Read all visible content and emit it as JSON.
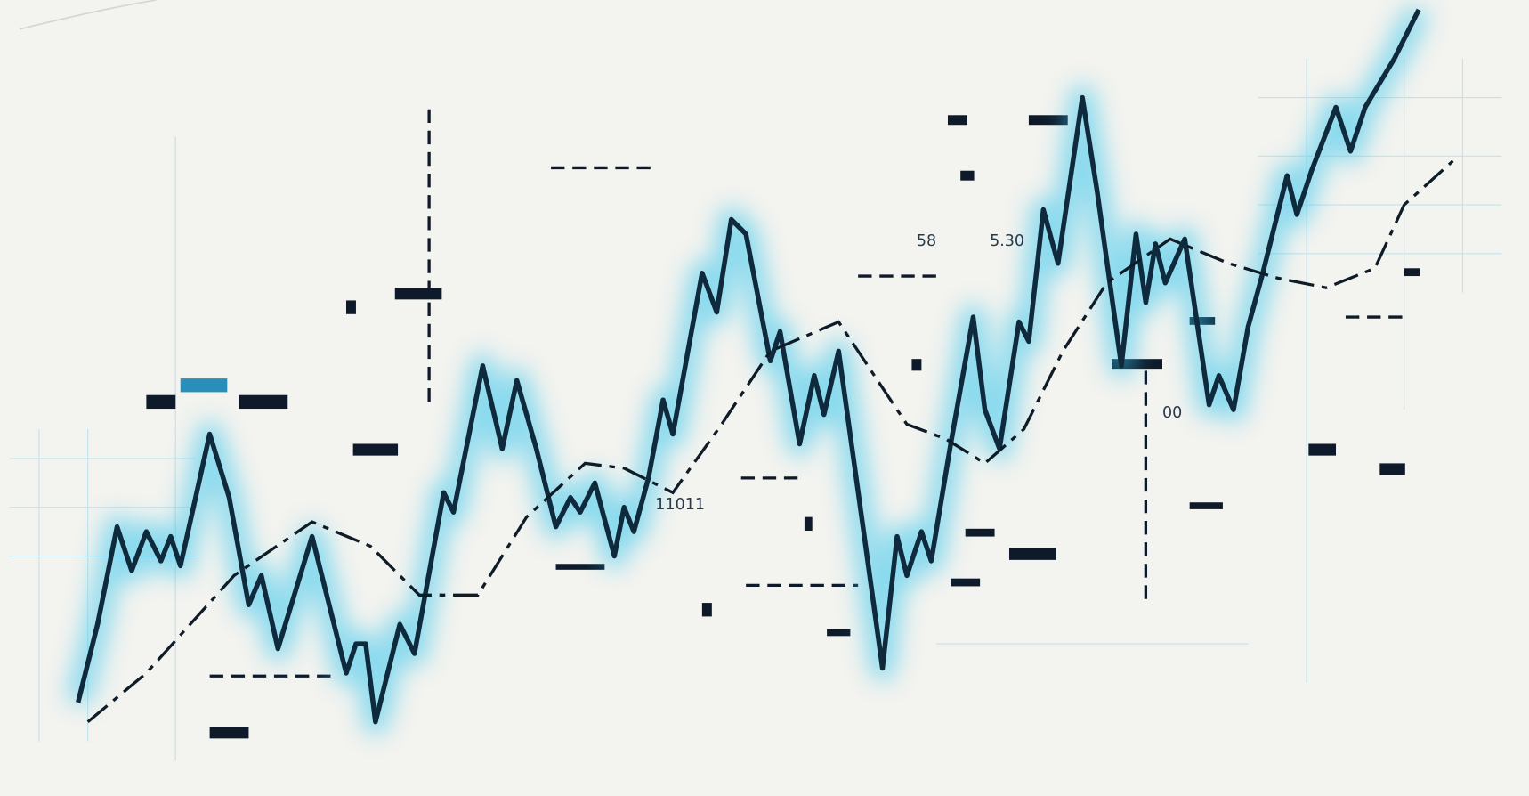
{
  "labels": [
    "58",
    "5.30",
    "11011",
    "00"
  ]
}
